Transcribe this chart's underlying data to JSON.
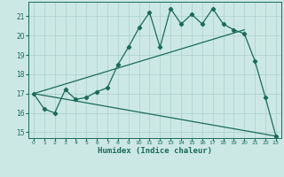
{
  "xlabel": "Humidex (Indice chaleur)",
  "bg_color": "#cce8e5",
  "grid_color": "#aacfca",
  "line_color": "#1a6b5a",
  "xlim": [
    -0.5,
    23.5
  ],
  "ylim": [
    14.7,
    21.75
  ],
  "yticks": [
    15,
    16,
    17,
    18,
    19,
    20,
    21
  ],
  "xticks": [
    0,
    1,
    2,
    3,
    4,
    5,
    6,
    7,
    8,
    9,
    10,
    11,
    12,
    13,
    14,
    15,
    16,
    17,
    18,
    19,
    20,
    21,
    22,
    23
  ],
  "line1_x": [
    0,
    1,
    2,
    3,
    4,
    5,
    6,
    7,
    8,
    9,
    10,
    11,
    12,
    13,
    14,
    15,
    16,
    17,
    18,
    19,
    20,
    21,
    22,
    23
  ],
  "line1_y": [
    17.0,
    16.2,
    16.0,
    17.2,
    16.7,
    16.8,
    17.1,
    17.3,
    18.5,
    19.4,
    20.4,
    21.2,
    19.4,
    21.4,
    20.6,
    21.1,
    20.6,
    21.4,
    20.6,
    20.3,
    20.1,
    18.7,
    16.8,
    14.8
  ],
  "line2_x": [
    0,
    23
  ],
  "line2_y": [
    17.0,
    14.8
  ],
  "line3_x": [
    0,
    20
  ],
  "line3_y": [
    17.0,
    20.3
  ],
  "linewidth": 0.9,
  "markersize": 2.2
}
